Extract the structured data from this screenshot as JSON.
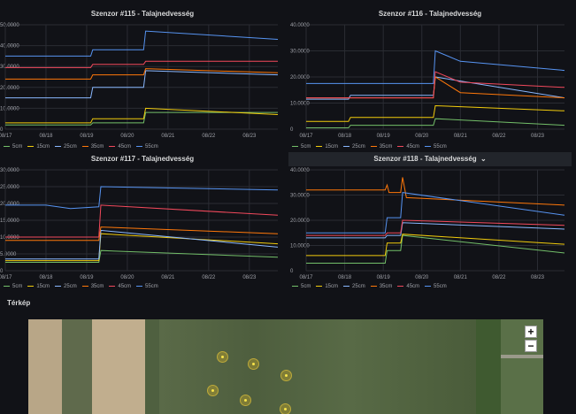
{
  "panels": [
    {
      "title": "Szenzor #115 - Talajnedvesség",
      "hovered": false,
      "legend": [
        "5cm",
        "15cm",
        "25cm",
        "35cm",
        "45cm",
        "55cm"
      ]
    },
    {
      "title": "Szenzor #116 - Talajnedvesség",
      "hovered": false,
      "legend": [
        "5cm",
        "15cm",
        "25cm",
        "35cm",
        "45cm",
        "55cm"
      ]
    },
    {
      "title": "Szenzor #117 - Talajnedvesség",
      "hovered": false,
      "legend": [
        "5cm",
        "15cm",
        "25cm",
        "35cm",
        "45cm",
        "55cm"
      ]
    },
    {
      "title": "Szenzor #118 - Talajnedvesség",
      "hovered": true,
      "title_suffix": "⌄",
      "legend": [
        "5cm",
        "15cm",
        "25cm",
        "35cm",
        "45cm",
        "55cm"
      ]
    }
  ],
  "series_colors": {
    "5cm": "#73bf69",
    "15cm": "#f2cc0c",
    "25cm": "#8ab8ff",
    "35cm": "#ff780a",
    "45cm": "#f2495c",
    "55cm": "#5794f2"
  },
  "section": {
    "title": "Térkép"
  },
  "map": {
    "zoom_in_label": "+",
    "zoom_out_label": "−",
    "marker_count": 6
  },
  "chart_data": [
    {
      "type": "line",
      "title": "Szenzor #115 - Talajnedvesség",
      "x": [
        "08/17",
        "08/18",
        "08/19",
        "08/20",
        "08/21",
        "08/22",
        "08/23"
      ],
      "y_ticks": [
        "0",
        "10.0000",
        "20.0000",
        "30.0000",
        "40.0000",
        "50.0000"
      ],
      "y_ticks_partial_left": true,
      "ylim": [
        0,
        50
      ],
      "xlim": [
        0,
        6.7
      ],
      "series": [
        {
          "name": "5cm",
          "points": [
            [
              0,
              2
            ],
            [
              2.1,
              2
            ],
            [
              2.15,
              3
            ],
            [
              3.4,
              3
            ],
            [
              3.45,
              8
            ],
            [
              6.7,
              8
            ]
          ]
        },
        {
          "name": "15cm",
          "points": [
            [
              0,
              3
            ],
            [
              2.1,
              3
            ],
            [
              2.15,
              5
            ],
            [
              3.4,
              5
            ],
            [
              3.45,
              10
            ],
            [
              6.7,
              7
            ]
          ]
        },
        {
          "name": "25cm",
          "points": [
            [
              0,
              15
            ],
            [
              2.1,
              15
            ],
            [
              2.15,
              20
            ],
            [
              3.4,
              20
            ],
            [
              3.45,
              28
            ],
            [
              6.7,
              26
            ]
          ]
        },
        {
          "name": "35cm",
          "points": [
            [
              0,
              24
            ],
            [
              2.1,
              24
            ],
            [
              2.15,
              26
            ],
            [
              3.4,
              26
            ],
            [
              3.45,
              29
            ],
            [
              6.7,
              27
            ]
          ]
        },
        {
          "name": "45cm",
          "points": [
            [
              0,
              29.5
            ],
            [
              2.1,
              29.5
            ],
            [
              2.15,
              31
            ],
            [
              3.4,
              31
            ],
            [
              3.45,
              32.5
            ],
            [
              6.7,
              32.5
            ]
          ]
        },
        {
          "name": "55cm",
          "points": [
            [
              0,
              35
            ],
            [
              2.1,
              35
            ],
            [
              2.15,
              38
            ],
            [
              3.4,
              38
            ],
            [
              3.45,
              47
            ],
            [
              6.7,
              43
            ]
          ]
        }
      ]
    },
    {
      "type": "line",
      "title": "Szenzor #116 - Talajnedvesség",
      "x": [
        "08/17",
        "08/18",
        "08/19",
        "08/20",
        "08/21",
        "08/22",
        "08/23"
      ],
      "y_ticks": [
        "0",
        "10.0000",
        "20.0000",
        "30.0000",
        "40.0000"
      ],
      "ylim": [
        0,
        40
      ],
      "xlim": [
        0,
        6.7
      ],
      "series": [
        {
          "name": "5cm",
          "points": [
            [
              0,
              0.5
            ],
            [
              1.1,
              0.5
            ],
            [
              1.15,
              1.5
            ],
            [
              3.3,
              1.5
            ],
            [
              3.35,
              4
            ],
            [
              6.7,
              1.5
            ]
          ]
        },
        {
          "name": "15cm",
          "points": [
            [
              0,
              3
            ],
            [
              1.1,
              3
            ],
            [
              1.15,
              4.5
            ],
            [
              3.3,
              4.5
            ],
            [
              3.35,
              9
            ],
            [
              6.7,
              7
            ]
          ]
        },
        {
          "name": "25cm",
          "points": [
            [
              0,
              11.5
            ],
            [
              1.1,
              11.5
            ],
            [
              1.15,
              13
            ],
            [
              3.3,
              13
            ],
            [
              3.35,
              20
            ],
            [
              6.7,
              12
            ]
          ]
        },
        {
          "name": "35cm",
          "points": [
            [
              0,
              12
            ],
            [
              3.3,
              12
            ],
            [
              3.35,
              20
            ],
            [
              4,
              14
            ],
            [
              6.7,
              12
            ]
          ]
        },
        {
          "name": "45cm",
          "points": [
            [
              0,
              12
            ],
            [
              3.3,
              12
            ],
            [
              3.35,
              22
            ],
            [
              4,
              18
            ],
            [
              6.7,
              16
            ]
          ]
        },
        {
          "name": "55cm",
          "points": [
            [
              0,
              17.5
            ],
            [
              3.3,
              17.5
            ],
            [
              3.35,
              30
            ],
            [
              4,
              26
            ],
            [
              6.7,
              22.5
            ]
          ]
        }
      ]
    },
    {
      "type": "line",
      "title": "Szenzor #117 - Talajnedvesség",
      "x": [
        "08/17",
        "08/18",
        "08/19",
        "08/20",
        "08/21",
        "08/22",
        "08/23"
      ],
      "y_ticks": [
        "0",
        "5.0000",
        "10.0000",
        "15.0000",
        "20.0000",
        "25.0000",
        "30.0000"
      ],
      "y_ticks_partial_left": true,
      "ylim": [
        0,
        30
      ],
      "xlim": [
        0,
        6.7
      ],
      "series": [
        {
          "name": "5cm",
          "points": [
            [
              0,
              2.5
            ],
            [
              2.3,
              2.5
            ],
            [
              2.35,
              6
            ],
            [
              6.7,
              4
            ]
          ]
        },
        {
          "name": "15cm",
          "points": [
            [
              0,
              3
            ],
            [
              2.3,
              3
            ],
            [
              2.35,
              11
            ],
            [
              6.7,
              8
            ]
          ]
        },
        {
          "name": "25cm",
          "points": [
            [
              0,
              3.5
            ],
            [
              2.3,
              3.5
            ],
            [
              2.35,
              12
            ],
            [
              6.7,
              7
            ]
          ]
        },
        {
          "name": "35cm",
          "points": [
            [
              0,
              9
            ],
            [
              2.3,
              9
            ],
            [
              2.35,
              13
            ],
            [
              6.7,
              11
            ]
          ]
        },
        {
          "name": "45cm",
          "points": [
            [
              0,
              10
            ],
            [
              2.3,
              10
            ],
            [
              2.35,
              19.5
            ],
            [
              6.7,
              16.5
            ]
          ]
        },
        {
          "name": "55cm",
          "points": [
            [
              0,
              19.5
            ],
            [
              1,
              19.5
            ],
            [
              1.6,
              18.5
            ],
            [
              2.3,
              19
            ],
            [
              2.35,
              25
            ],
            [
              6.7,
              24
            ]
          ]
        }
      ]
    },
    {
      "type": "line",
      "title": "Szenzor #118 - Talajnedvesség",
      "x": [
        "08/17",
        "08/18",
        "08/19",
        "08/20",
        "08/21",
        "08/22",
        "08/23"
      ],
      "y_ticks": [
        "0",
        "10.0000",
        "20.0000",
        "30.0000",
        "40.0000"
      ],
      "ylim": [
        0,
        40
      ],
      "xlim": [
        0,
        6.7
      ],
      "series": [
        {
          "name": "5cm",
          "points": [
            [
              0,
              3
            ],
            [
              2.05,
              3
            ],
            [
              2.1,
              8
            ],
            [
              2.45,
              8
            ],
            [
              2.5,
              14
            ],
            [
              6.7,
              7
            ]
          ]
        },
        {
          "name": "15cm",
          "points": [
            [
              0,
              6
            ],
            [
              2.05,
              6
            ],
            [
              2.1,
              11
            ],
            [
              2.45,
              11
            ],
            [
              2.5,
              14.5
            ],
            [
              6.7,
              10.5
            ]
          ]
        },
        {
          "name": "25cm",
          "points": [
            [
              0,
              13
            ],
            [
              2.05,
              13
            ],
            [
              2.1,
              14
            ],
            [
              2.45,
              14
            ],
            [
              2.5,
              19
            ],
            [
              6.7,
              16.5
            ]
          ]
        },
        {
          "name": "35cm",
          "points": [
            [
              0,
              32
            ],
            [
              2.05,
              32
            ],
            [
              2.1,
              34
            ],
            [
              2.15,
              31
            ],
            [
              2.45,
              31
            ],
            [
              2.5,
              37
            ],
            [
              2.6,
              29
            ],
            [
              6.7,
              26
            ]
          ]
        },
        {
          "name": "45cm",
          "points": [
            [
              0,
              14
            ],
            [
              2.05,
              14
            ],
            [
              2.1,
              15
            ],
            [
              2.45,
              15
            ],
            [
              2.5,
              20
            ],
            [
              6.7,
              18
            ]
          ]
        },
        {
          "name": "55cm",
          "points": [
            [
              0,
              15
            ],
            [
              2.05,
              15
            ],
            [
              2.1,
              21
            ],
            [
              2.45,
              21
            ],
            [
              2.5,
              31
            ],
            [
              6.7,
              22
            ]
          ]
        }
      ]
    }
  ]
}
